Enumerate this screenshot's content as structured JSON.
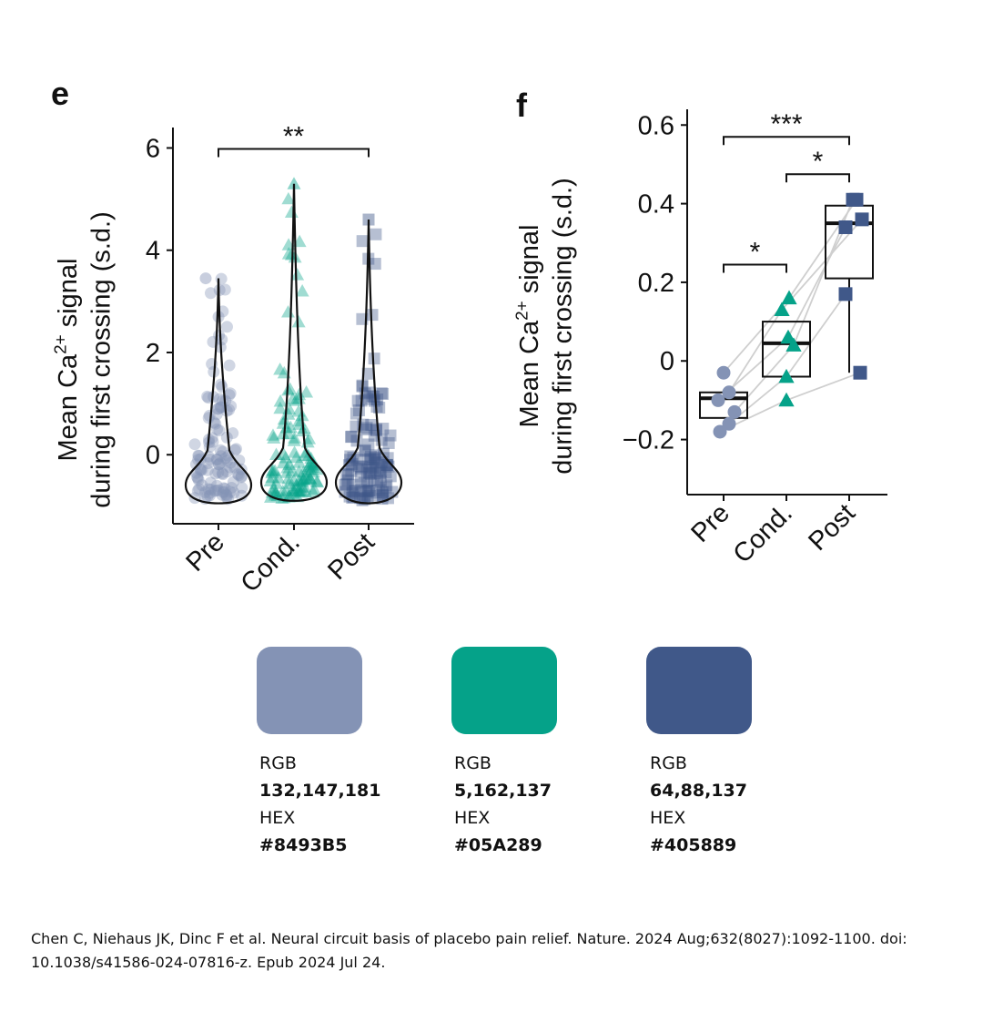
{
  "chart_data": [
    {
      "panel": "e",
      "type": "violin",
      "ylabel_line1": "Mean Ca",
      "ylabel_sup": "2+",
      "ylabel_line1_rest": " signal",
      "ylabel_line2": "during first crossing (s.d.)",
      "ylim": [
        -1.35,
        6.4
      ],
      "yticks": [
        0,
        2,
        4,
        6
      ],
      "categories": [
        "Pre",
        "Cond.",
        "Post"
      ],
      "colors": [
        "#8493B5",
        "#05A289",
        "#405889"
      ],
      "markers": [
        "circle",
        "triangle",
        "square"
      ],
      "series": [
        {
          "name": "Pre",
          "min": -0.95,
          "max": 3.45,
          "median": -0.45
        },
        {
          "name": "Cond.",
          "min": -0.9,
          "max": 5.3,
          "median": -0.4
        },
        {
          "name": "Post",
          "min": -0.95,
          "max": 4.6,
          "median": -0.4
        }
      ],
      "significance": [
        {
          "from": "Pre",
          "to": "Post",
          "label": "**",
          "y": 6.0
        }
      ]
    },
    {
      "panel": "f",
      "type": "box_with_paired_points",
      "ylabel_line1": "Mean Ca",
      "ylabel_sup": "2+",
      "ylabel_line1_rest": " signal",
      "ylabel_line2": "during first crossing (s.d.)",
      "ylim": [
        -0.34,
        0.64
      ],
      "yticks": [
        -0.2,
        0,
        0.2,
        0.4,
        0.6
      ],
      "ytick_labels": [
        "−0.2",
        "0",
        "0.2",
        "0.4",
        "0.6"
      ],
      "categories": [
        "Pre",
        "Cond.",
        "Post"
      ],
      "colors": [
        "#8493B5",
        "#05A289",
        "#405889"
      ],
      "boxes": [
        {
          "name": "Pre",
          "q1": -0.145,
          "median": -0.095,
          "q3": -0.08,
          "whisker_low": -0.145,
          "whisker_high": -0.08
        },
        {
          "name": "Cond.",
          "q1": -0.04,
          "median": 0.045,
          "q3": 0.1,
          "whisker_low": -0.04,
          "whisker_high": 0.1
        },
        {
          "name": "Post",
          "q1": 0.21,
          "median": 0.35,
          "q3": 0.395,
          "whisker_low": -0.03,
          "whisker_high": 0.395
        }
      ],
      "paired_points": [
        [
          -0.03,
          0.16,
          0.41
        ],
        [
          -0.08,
          0.13,
          0.36
        ],
        [
          -0.1,
          0.06,
          0.34
        ],
        [
          -0.13,
          0.04,
          0.41
        ],
        [
          -0.16,
          -0.04,
          0.17
        ],
        [
          -0.18,
          -0.1,
          -0.03
        ]
      ],
      "significance": [
        {
          "from": "Pre",
          "to": "Post",
          "label": "***",
          "y": 0.57
        },
        {
          "from": "Cond.",
          "to": "Post",
          "label": "*",
          "y": 0.475
        },
        {
          "from": "Pre",
          "to": "Cond.",
          "label": "*",
          "y": 0.245
        }
      ]
    }
  ],
  "swatches": [
    {
      "rgb_label": "RGB",
      "rgb": "132,147,181",
      "hex_label": "HEX",
      "hex": "#8493B5",
      "color": "#8493B5"
    },
    {
      "rgb_label": "RGB",
      "rgb": "5,162,137",
      "hex_label": "HEX",
      "hex": "#05A289",
      "color": "#05A289"
    },
    {
      "rgb_label": "RGB",
      "rgb": "64,88,137",
      "hex_label": "HEX",
      "hex": "#405889",
      "color": "#405889"
    }
  ],
  "citation": "Chen C, Niehaus JK, Dinc F et al. Neural circuit basis of placebo pain relief. Nature. 2024 Aug;632(8027):1092-1100. doi: 10.1038/s41586-024-07816-z. Epub 2024 Jul 24."
}
